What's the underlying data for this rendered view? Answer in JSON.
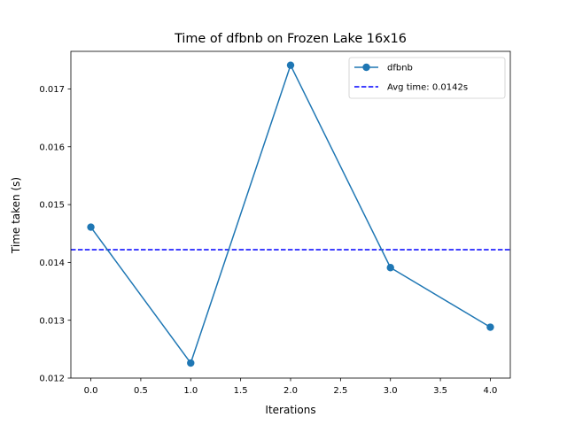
{
  "chart_data": {
    "type": "line",
    "title": "Time of dfbnb on Frozen Lake 16x16",
    "xlabel": "Iterations",
    "ylabel": "Time taken (s)",
    "xlim": [
      -0.2,
      4.2
    ],
    "ylim": [
      0.012,
      0.01765
    ],
    "x_ticks": [
      0.0,
      0.5,
      1.0,
      1.5,
      2.0,
      2.5,
      3.0,
      3.5,
      4.0
    ],
    "x_tick_labels": [
      "0.0",
      "0.5",
      "1.0",
      "1.5",
      "2.0",
      "2.5",
      "3.0",
      "3.5",
      "4.0"
    ],
    "y_ticks": [
      0.012,
      0.013,
      0.014,
      0.015,
      0.016,
      0.017
    ],
    "y_tick_labels": [
      "0.012",
      "0.013",
      "0.014",
      "0.015",
      "0.016",
      "0.017"
    ],
    "grid": false,
    "legend_position": "top-right",
    "series": [
      {
        "name": "dfbnb",
        "x": [
          0,
          1,
          2,
          3,
          4
        ],
        "values": [
          0.01461,
          0.01226,
          0.01741,
          0.01391,
          0.01288
        ],
        "color": "#1f77b4",
        "marker": "circle",
        "line_style": "solid"
      }
    ],
    "reference_lines": [
      {
        "name": "Avg time: 0.0142s",
        "orientation": "horizontal",
        "value": 0.01422,
        "color": "#0000ff",
        "line_style": "dashed"
      }
    ]
  }
}
